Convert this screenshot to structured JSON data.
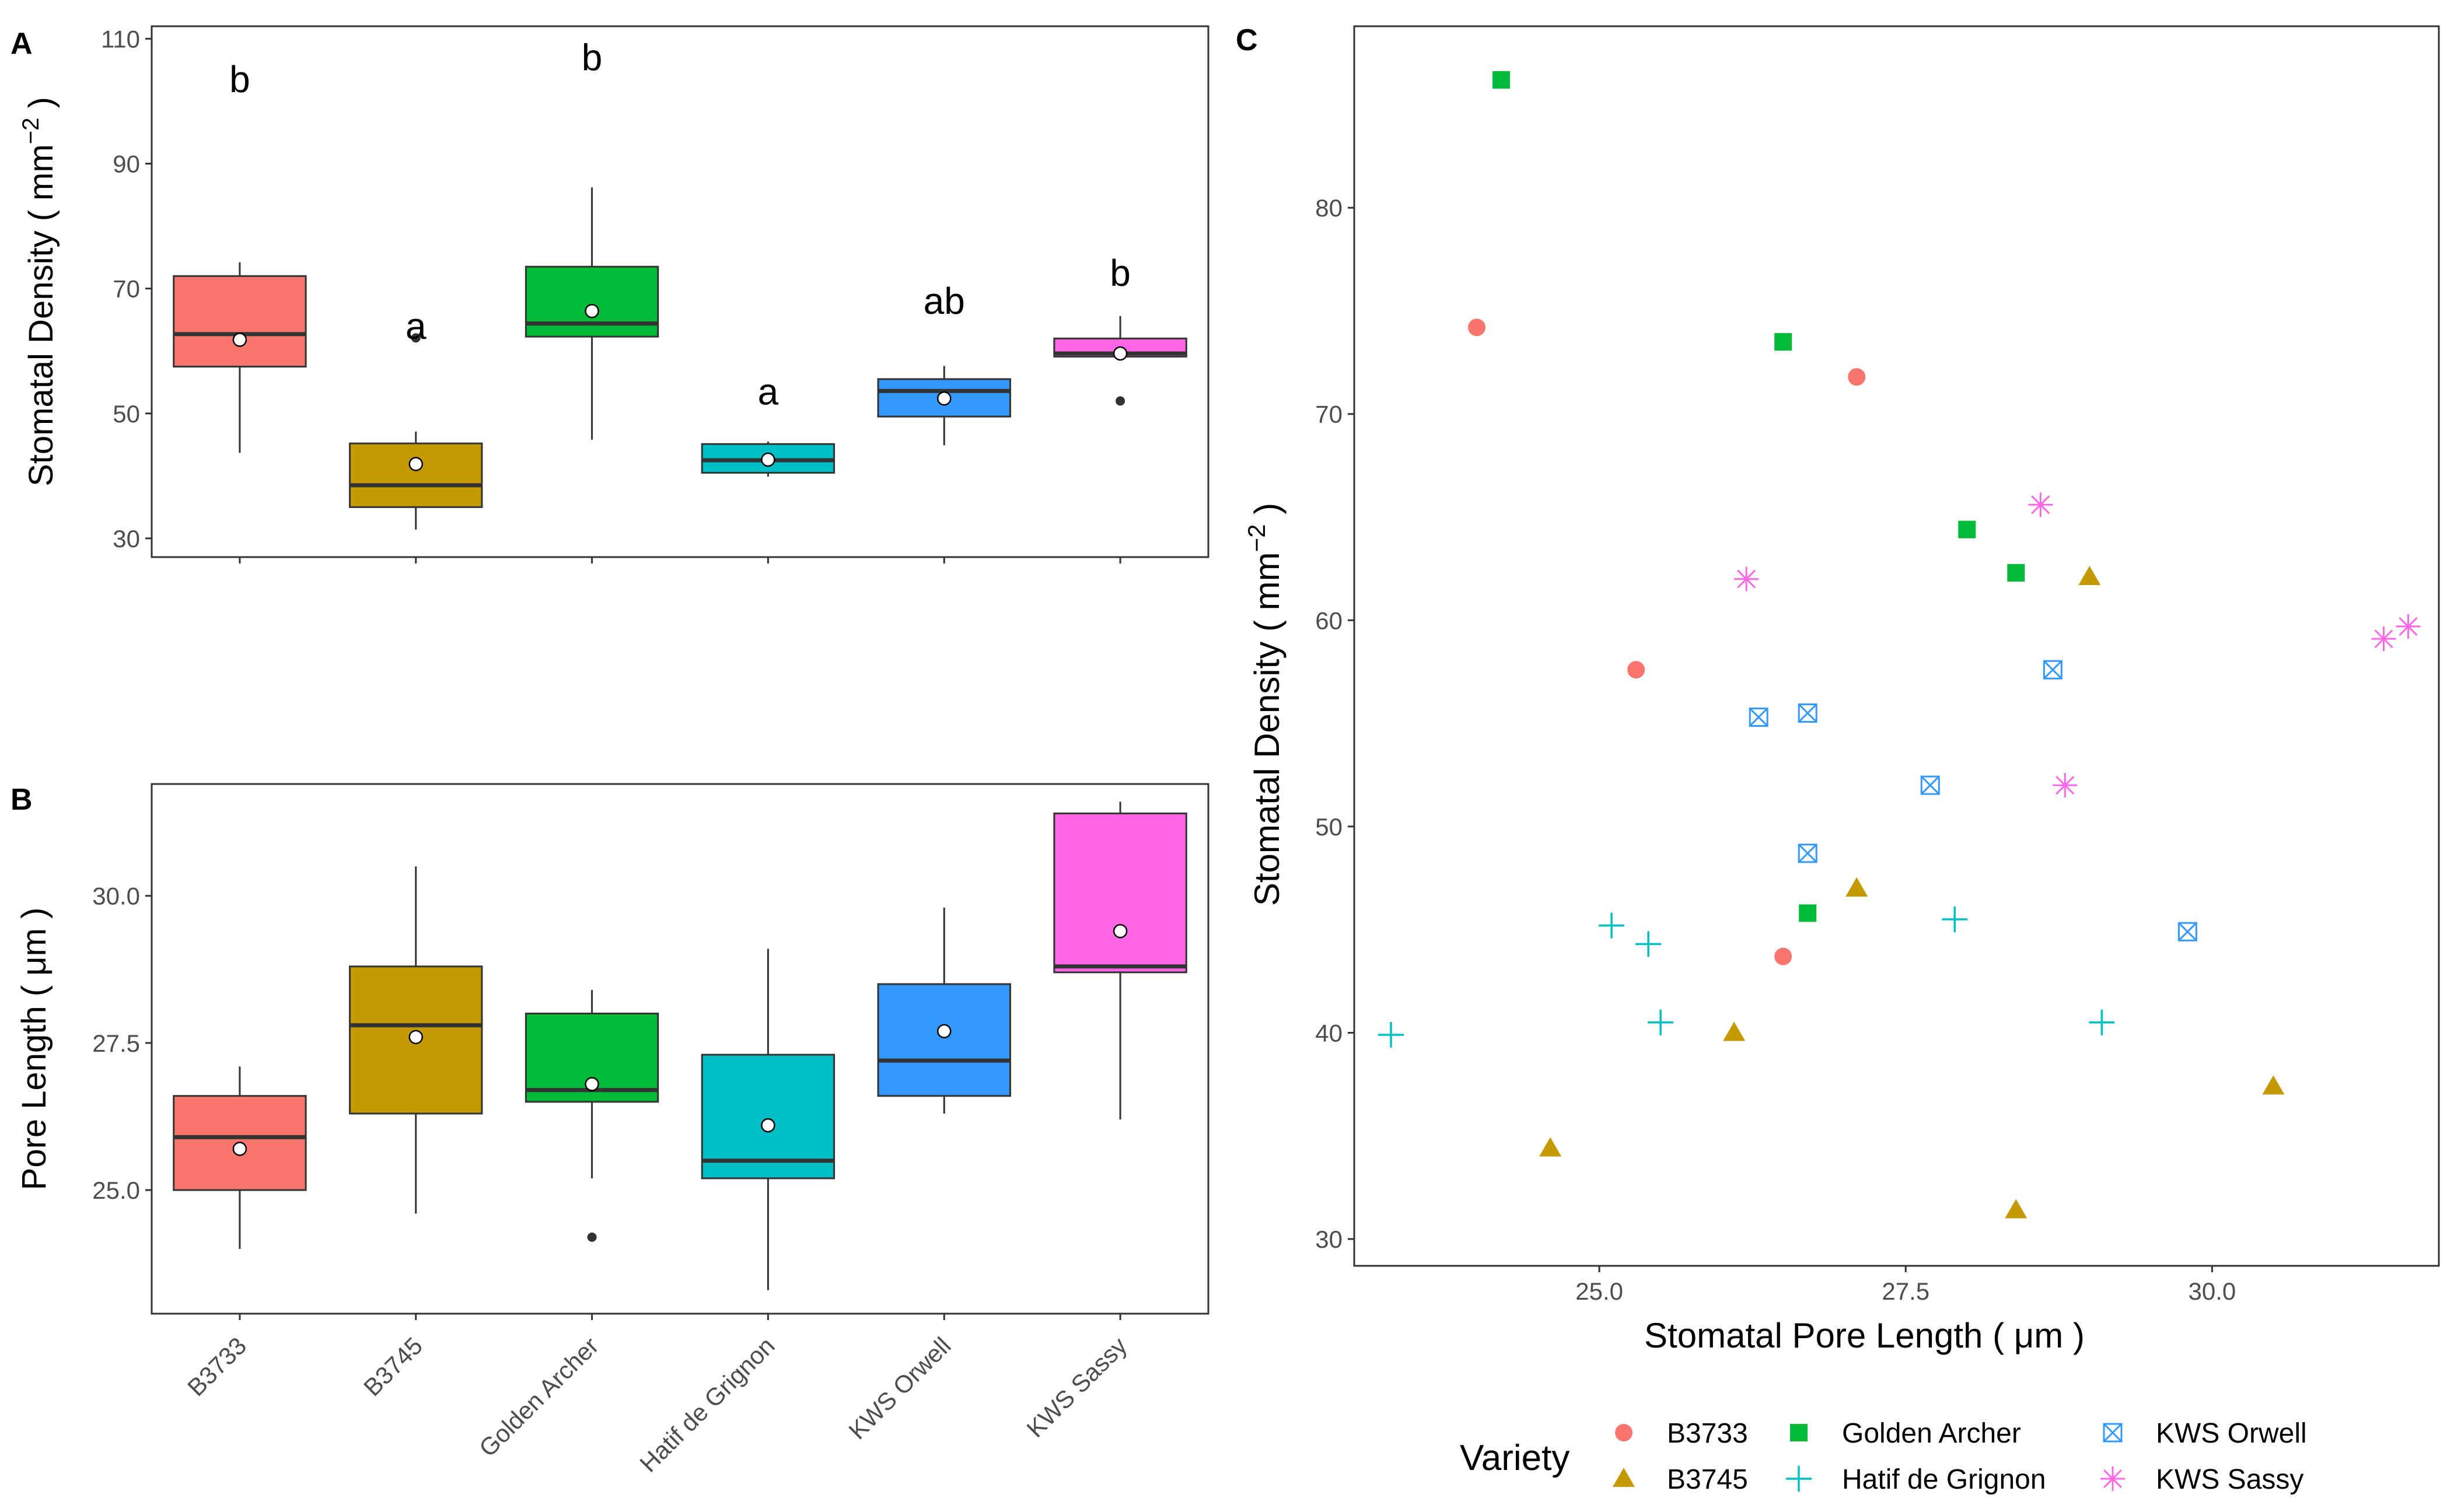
{
  "chart_data": [
    {
      "panel": "A",
      "type": "box",
      "ylabel": "Stomatal Density ( mm",
      "ylabel_sup": "−2",
      "ylabel_close": " )",
      "ylim": [
        27,
        112
      ],
      "yticks": [
        30,
        50,
        70,
        90,
        110
      ],
      "ytick_labels": [
        "30",
        "50",
        "70",
        "90",
        "110"
      ],
      "categories": [
        "B3733",
        "B3745",
        "Golden Archer",
        "Hatif de Grignon",
        "KWS Orwell",
        "KWS Sassy"
      ],
      "colors": [
        "#F8766D",
        "#C49A00",
        "#00BA38",
        "#00BFC4",
        "#3399FF",
        "#FF66E6"
      ],
      "boxes": [
        {
          "min": 43.7,
          "q1": 57.5,
          "median": 62.7,
          "q3": 72.0,
          "max": 74.2,
          "mean": 61.8,
          "outliers": [],
          "letter": "b",
          "letter_y": 103.5
        },
        {
          "min": 31.4,
          "q1": 35.0,
          "median": 38.5,
          "q3": 45.2,
          "max": 47.1,
          "mean": 41.9,
          "outliers": [
            62.1
          ],
          "letter": "a",
          "letter_y": 64.0
        },
        {
          "min": 45.8,
          "q1": 62.3,
          "median": 64.4,
          "q3": 73.5,
          "max": 86.2,
          "mean": 66.4,
          "outliers": [],
          "letter": "b",
          "letter_y": 107.0
        },
        {
          "min": 39.9,
          "q1": 40.5,
          "median": 42.5,
          "q3": 45.1,
          "max": 45.5,
          "mean": 42.6,
          "outliers": [],
          "letter": "a",
          "letter_y": 53.5
        },
        {
          "min": 44.9,
          "q1": 49.5,
          "median": 53.6,
          "q3": 55.5,
          "max": 57.6,
          "mean": 52.4,
          "outliers": [],
          "letter": "ab",
          "letter_y": 68.0
        },
        {
          "min": 59.1,
          "q1": 59.1,
          "median": 59.6,
          "q3": 62.0,
          "max": 65.6,
          "mean": 59.6,
          "outliers": [
            52.0
          ],
          "letter": "b",
          "letter_y": 72.5
        }
      ]
    },
    {
      "panel": "B",
      "type": "box",
      "ylabel": "Pore Length ( μm )",
      "ylim": [
        22.9,
        31.9
      ],
      "yticks": [
        25.0,
        27.5,
        30.0
      ],
      "ytick_labels": [
        "25.0",
        "27.5",
        "30.0"
      ],
      "categories": [
        "B3733",
        "B3745",
        "Golden Archer",
        "Hatif de Grignon",
        "KWS Orwell",
        "KWS Sassy"
      ],
      "colors": [
        "#F8766D",
        "#C49A00",
        "#00BA38",
        "#00BFC4",
        "#3399FF",
        "#FF66E6"
      ],
      "boxes": [
        {
          "min": 24.0,
          "q1": 25.0,
          "median": 25.9,
          "q3": 26.6,
          "max": 27.1,
          "mean": 25.7,
          "outliers": []
        },
        {
          "min": 24.6,
          "q1": 26.3,
          "median": 27.8,
          "q3": 28.8,
          "max": 30.5,
          "mean": 27.6,
          "outliers": []
        },
        {
          "min": 25.2,
          "q1": 26.5,
          "median": 26.7,
          "q3": 28.0,
          "max": 28.4,
          "mean": 26.8,
          "outliers": [
            24.2
          ]
        },
        {
          "min": 23.3,
          "q1": 25.2,
          "median": 25.5,
          "q3": 27.3,
          "max": 29.1,
          "mean": 26.1,
          "outliers": []
        },
        {
          "min": 26.3,
          "q1": 26.6,
          "median": 27.2,
          "q3": 28.5,
          "max": 29.8,
          "mean": 27.7,
          "outliers": []
        },
        {
          "min": 26.2,
          "q1": 28.7,
          "median": 28.8,
          "q3": 31.4,
          "max": 31.6,
          "mean": 29.4,
          "outliers": []
        }
      ]
    },
    {
      "panel": "C",
      "type": "scatter",
      "xlabel": "Stomatal Pore Length ( μm )",
      "ylabel": "Stomatal Density ( mm",
      "ylabel_sup": "−2",
      "ylabel_close": " )",
      "xlim": [
        23.0,
        31.85
      ],
      "ylim": [
        28.7,
        88.8
      ],
      "xticks": [
        25.0,
        27.5,
        30.0
      ],
      "xtick_labels": [
        "25.0",
        "27.5",
        "30.0"
      ],
      "yticks": [
        30,
        40,
        50,
        60,
        70,
        80
      ],
      "ytick_labels": [
        "30",
        "40",
        "50",
        "60",
        "70",
        "80"
      ],
      "legend_title": "Variety",
      "legend_position": "bottom",
      "series": [
        {
          "name": "B3733",
          "shape": "circle",
          "color": "#F8766D",
          "points": [
            [
              24.0,
              74.2
            ],
            [
              27.1,
              71.8
            ],
            [
              25.3,
              57.6
            ],
            [
              26.5,
              43.7
            ]
          ]
        },
        {
          "name": "B3745",
          "shape": "triangle",
          "color": "#C49A00",
          "points": [
            [
              29.0,
              62.1
            ],
            [
              27.1,
              47.0
            ],
            [
              26.1,
              40.0
            ],
            [
              24.6,
              34.4
            ],
            [
              30.5,
              37.4
            ],
            [
              28.4,
              31.4
            ]
          ]
        },
        {
          "name": "Golden Archer",
          "shape": "square",
          "color": "#00BA38",
          "points": [
            [
              24.2,
              86.2
            ],
            [
              26.5,
              73.5
            ],
            [
              28.0,
              64.4
            ],
            [
              28.4,
              62.3
            ],
            [
              26.7,
              45.8
            ]
          ]
        },
        {
          "name": "Hatif de Grignon",
          "shape": "plus",
          "color": "#00BFC4",
          "points": [
            [
              25.1,
              45.2
            ],
            [
              25.4,
              44.3
            ],
            [
              25.5,
              40.5
            ],
            [
              23.3,
              39.9
            ],
            [
              27.9,
              45.5
            ],
            [
              29.1,
              40.5
            ]
          ]
        },
        {
          "name": "KWS Orwell",
          "shape": "boxx",
          "color": "#3399FF",
          "points": [
            [
              26.3,
              55.3
            ],
            [
              26.7,
              55.5
            ],
            [
              28.7,
              57.6
            ],
            [
              27.7,
              52.0
            ],
            [
              26.7,
              48.7
            ],
            [
              29.8,
              44.9
            ]
          ]
        },
        {
          "name": "KWS Sassy",
          "shape": "star",
          "color": "#FF66E6",
          "points": [
            [
              28.6,
              65.6
            ],
            [
              26.2,
              62.0
            ],
            [
              28.8,
              52.0
            ],
            [
              31.4,
              59.1
            ],
            [
              31.6,
              59.7
            ]
          ]
        }
      ]
    }
  ]
}
